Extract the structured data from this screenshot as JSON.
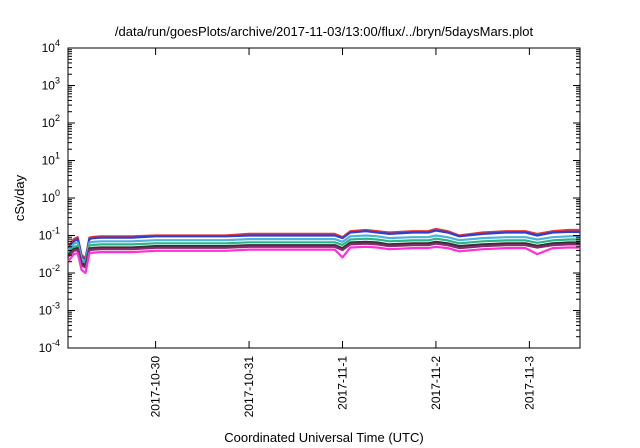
{
  "chart_data": {
    "type": "line",
    "title": "/data/run/goesPlots/archive/2017-11-03/13:00/flux/../bryn/5daysMars.plot",
    "xlabel": "Coordinated Universal Time (UTC)",
    "ylabel": "cSv/day",
    "yscale": "log",
    "ylim": [
      0.0001,
      10000
    ],
    "xlim": [
      "2017-10-29T01:30",
      "2017-11-03T13:00"
    ],
    "x_ticks": [
      "2017-10-30",
      "2017-10-31",
      "2017-11-1",
      "2017-11-2",
      "2017-11-3"
    ],
    "y_ticks": [
      {
        "base": "10",
        "exp": "-4",
        "value": 0.0001
      },
      {
        "base": "10",
        "exp": "-3",
        "value": 0.001
      },
      {
        "base": "10",
        "exp": "-2",
        "value": 0.01
      },
      {
        "base": "10",
        "exp": "-1",
        "value": 0.1
      },
      {
        "base": "10",
        "exp": "0",
        "value": 1
      },
      {
        "base": "10",
        "exp": "1",
        "value": 10
      },
      {
        "base": "10",
        "exp": "2",
        "value": 100
      },
      {
        "base": "10",
        "exp": "3",
        "value": 1000
      },
      {
        "base": "10",
        "exp": "4",
        "value": 10000
      }
    ],
    "grid": false,
    "x": [
      "2017-10-29T01:30",
      "2017-10-29T03:00",
      "2017-10-29T04:00",
      "2017-10-29T05:00",
      "2017-10-29T06:00",
      "2017-10-29T07:00",
      "2017-10-29T08:00",
      "2017-10-29T10:00",
      "2017-10-29T12:00",
      "2017-10-29T15:00",
      "2017-10-29T18:00",
      "2017-10-30T00:00",
      "2017-10-30T06:00",
      "2017-10-30T12:00",
      "2017-10-30T18:00",
      "2017-10-31T00:00",
      "2017-10-31T06:00",
      "2017-10-31T12:00",
      "2017-10-31T18:00",
      "2017-10-31T22:00",
      "2017-11-01T00:00",
      "2017-11-01T02:00",
      "2017-11-01T06:00",
      "2017-11-01T09:00",
      "2017-11-01T12:00",
      "2017-11-01T18:00",
      "2017-11-01T22:00",
      "2017-11-02T00:00",
      "2017-11-02T03:00",
      "2017-11-02T06:00",
      "2017-11-02T12:00",
      "2017-11-02T18:00",
      "2017-11-02T23:00",
      "2017-11-03T02:00",
      "2017-11-03T06:00",
      "2017-11-03T10:00",
      "2017-11-03T13:00"
    ],
    "series": [
      {
        "color": "#e8352c",
        "values": [
          0.05,
          0.08,
          0.09,
          0.03,
          0.025,
          0.088,
          0.092,
          0.095,
          0.095,
          0.095,
          0.095,
          0.1,
          0.1,
          0.1,
          0.1,
          0.11,
          0.11,
          0.11,
          0.11,
          0.11,
          0.09,
          0.13,
          0.14,
          0.13,
          0.12,
          0.13,
          0.13,
          0.15,
          0.13,
          0.1,
          0.12,
          0.13,
          0.13,
          0.11,
          0.13,
          0.14,
          0.14
        ]
      },
      {
        "color": "#2f3fd6",
        "values": [
          0.045,
          0.07,
          0.08,
          0.027,
          0.022,
          0.08,
          0.085,
          0.088,
          0.088,
          0.088,
          0.088,
          0.095,
          0.095,
          0.095,
          0.095,
          0.1,
          0.1,
          0.1,
          0.1,
          0.1,
          0.085,
          0.12,
          0.13,
          0.12,
          0.11,
          0.12,
          0.12,
          0.135,
          0.12,
          0.095,
          0.11,
          0.12,
          0.12,
          0.1,
          0.12,
          0.125,
          0.125
        ]
      },
      {
        "color": "#4fb3d8",
        "values": [
          0.04,
          0.06,
          0.065,
          0.024,
          0.02,
          0.065,
          0.068,
          0.07,
          0.07,
          0.07,
          0.07,
          0.075,
          0.075,
          0.075,
          0.075,
          0.08,
          0.08,
          0.08,
          0.08,
          0.08,
          0.068,
          0.095,
          0.1,
          0.095,
          0.085,
          0.09,
          0.09,
          0.1,
          0.09,
          0.075,
          0.085,
          0.09,
          0.09,
          0.078,
          0.09,
          0.095,
          0.095
        ]
      },
      {
        "color": "#2ab58a",
        "values": [
          0.035,
          0.05,
          0.053,
          0.021,
          0.018,
          0.054,
          0.056,
          0.058,
          0.058,
          0.058,
          0.058,
          0.062,
          0.062,
          0.062,
          0.062,
          0.066,
          0.066,
          0.066,
          0.066,
          0.066,
          0.056,
          0.078,
          0.082,
          0.078,
          0.07,
          0.074,
          0.074,
          0.082,
          0.074,
          0.062,
          0.07,
          0.074,
          0.074,
          0.064,
          0.074,
          0.078,
          0.078
        ]
      },
      {
        "color": "#333333",
        "values": [
          0.03,
          0.043,
          0.046,
          0.018,
          0.016,
          0.045,
          0.047,
          0.048,
          0.048,
          0.048,
          0.048,
          0.052,
          0.052,
          0.052,
          0.052,
          0.055,
          0.055,
          0.055,
          0.055,
          0.055,
          0.046,
          0.065,
          0.068,
          0.065,
          0.058,
          0.062,
          0.062,
          0.068,
          0.062,
          0.052,
          0.058,
          0.062,
          0.062,
          0.053,
          0.062,
          0.065,
          0.065
        ]
      },
      {
        "color": "#8a2a6e",
        "values": [
          0.027,
          0.039,
          0.041,
          0.016,
          0.014,
          0.041,
          0.042,
          0.043,
          0.043,
          0.043,
          0.043,
          0.047,
          0.047,
          0.047,
          0.047,
          0.05,
          0.05,
          0.05,
          0.05,
          0.05,
          0.041,
          0.058,
          0.061,
          0.058,
          0.052,
          0.055,
          0.055,
          0.061,
          0.055,
          0.046,
          0.052,
          0.055,
          0.055,
          0.048,
          0.055,
          0.058,
          0.058
        ]
      },
      {
        "color": "#ff2fd9",
        "values": [
          0.02,
          0.032,
          0.034,
          0.012,
          0.01,
          0.034,
          0.035,
          0.036,
          0.036,
          0.036,
          0.036,
          0.039,
          0.039,
          0.039,
          0.039,
          0.042,
          0.042,
          0.042,
          0.042,
          0.042,
          0.026,
          0.048,
          0.05,
          0.048,
          0.043,
          0.046,
          0.046,
          0.05,
          0.046,
          0.038,
          0.043,
          0.046,
          0.046,
          0.032,
          0.046,
          0.048,
          0.048
        ]
      }
    ]
  }
}
